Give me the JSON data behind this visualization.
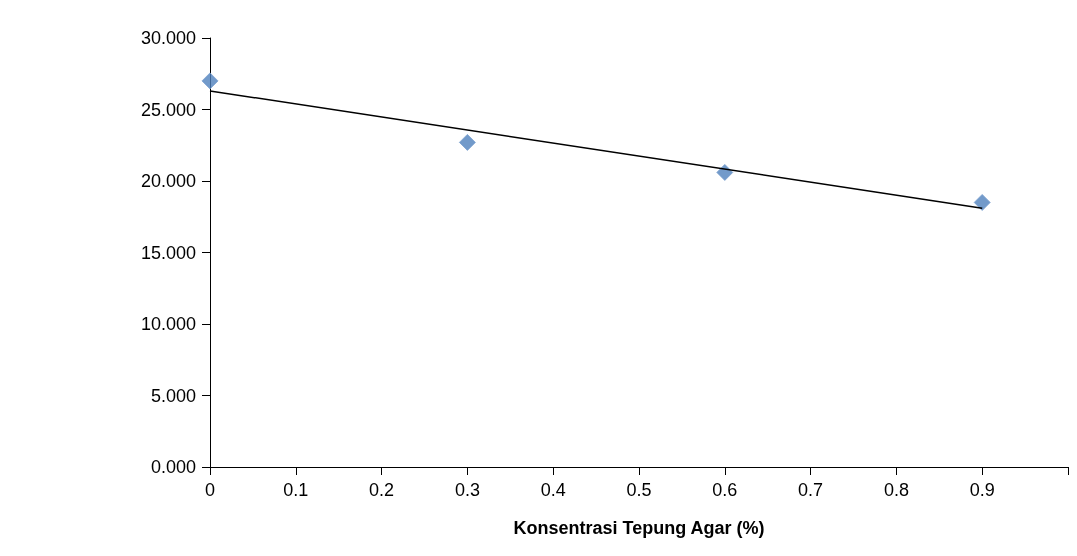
{
  "chart_data": {
    "type": "scatter",
    "xlabel": "Konsentrasi Tepung Agar (%)",
    "marker": "diamond",
    "grid": false,
    "xlim": [
      0,
      1
    ],
    "xticks": [
      0,
      0.1,
      0.2,
      0.3,
      0.4,
      0.5,
      0.6,
      0.7,
      0.8,
      0.9,
      {
        "value": 1,
        "label": null
      }
    ],
    "ylim": [
      0,
      30
    ],
    "yticks": [
      {
        "value": 0,
        "label": "0.000"
      },
      {
        "value": 5,
        "label": "5.000"
      },
      {
        "value": 10,
        "label": "10.000"
      },
      {
        "value": 15,
        "label": "15.000"
      },
      {
        "value": 20,
        "label": "20.000"
      },
      {
        "value": 25,
        "label": "25.000"
      },
      {
        "value": 30,
        "label": "30.000"
      }
    ],
    "series": [
      {
        "color": "#4f81bd",
        "x": [
          0,
          0.3,
          0.6,
          0.9
        ],
        "values": [
          27.0,
          22.7,
          20.6,
          18.5
        ]
      },
      {
        "type": "line",
        "marker": "none",
        "color": "#000000",
        "x": [
          0,
          0.9
        ],
        "values": [
          26.3,
          18.1
        ]
      }
    ]
  }
}
